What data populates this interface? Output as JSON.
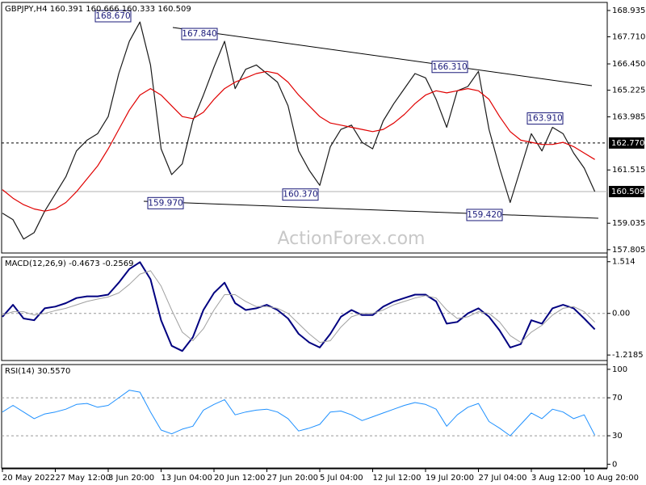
{
  "chart_data": [
    {
      "type": "line",
      "title": "GBPJPY,H4  160.391 160.666 160.333 160.509",
      "watermark": "ActionForex.com",
      "ylim": [
        157.65,
        169.31
      ],
      "yticks": [
        157.805,
        159.035,
        161.515,
        163.985,
        165.225,
        {
          "value": 166.45,
          "label": "166.450"
        },
        {
          "value": 167.71,
          "label": "167.710"
        },
        168.935
      ],
      "levels": [
        {
          "value": 162.77,
          "label": "162.770",
          "style": "dashed"
        },
        {
          "value": 160.509,
          "label": "160.509",
          "style": "solid"
        }
      ],
      "annotations": [
        {
          "value": 168.67,
          "label": "168.670"
        },
        {
          "value": 167.84,
          "label": "167.840"
        },
        {
          "value": 166.31,
          "label": "166.310"
        },
        {
          "value": 163.91,
          "label": "163.910"
        },
        {
          "value": 160.37,
          "label": "160.370"
        },
        {
          "value": 159.97,
          "label": "159.970"
        },
        {
          "value": 159.42,
          "label": "159.420"
        }
      ],
      "series": [
        {
          "color": "#1a1a1a",
          "values": [
            159.5,
            159.2,
            158.3,
            158.6,
            159.6,
            160.4,
            161.2,
            162.4,
            162.9,
            163.2,
            164.0,
            166.0,
            167.5,
            168.4,
            166.4,
            162.5,
            161.3,
            161.8,
            163.8,
            165.0,
            166.3,
            167.5,
            165.3,
            166.2,
            166.4,
            166.0,
            165.6,
            164.5,
            162.4,
            161.5,
            160.8,
            162.6,
            163.4,
            163.6,
            162.8,
            162.5,
            163.8,
            164.6,
            165.3,
            166.0,
            165.8,
            164.8,
            163.5,
            165.2,
            165.4,
            166.1,
            163.4,
            161.6,
            160.0,
            161.6,
            163.2,
            162.4,
            163.5,
            163.2,
            162.3,
            161.6,
            160.509
          ]
        },
        {
          "color": "#e00000",
          "values": [
            160.6,
            160.2,
            159.9,
            159.7,
            159.6,
            159.7,
            160.0,
            160.5,
            161.1,
            161.7,
            162.5,
            163.4,
            164.3,
            165.0,
            165.3,
            165.0,
            164.5,
            164.0,
            163.9,
            164.2,
            164.8,
            165.3,
            165.6,
            165.8,
            166.0,
            166.1,
            166.0,
            165.6,
            165.0,
            164.5,
            164.0,
            163.7,
            163.6,
            163.5,
            163.4,
            163.3,
            163.4,
            163.7,
            164.1,
            164.6,
            165.0,
            165.2,
            165.1,
            165.2,
            165.3,
            165.2,
            164.8,
            164.0,
            163.3,
            162.9,
            162.8,
            162.7,
            162.7,
            162.8,
            162.6,
            162.3,
            162.0
          ]
        }
      ]
    },
    {
      "type": "line",
      "title": "MACD(12,26,9) -0.4673 -0.2569",
      "ylim": [
        -1.38,
        1.65
      ],
      "yticks": [
        -1.2185,
        {
          "value": 0,
          "label": "0.00"
        },
        1.514
      ],
      "series": [
        {
          "color": "#000080",
          "width": 2,
          "values": [
            -0.1,
            0.25,
            -0.15,
            -0.2,
            0.15,
            0.2,
            0.3,
            0.45,
            0.5,
            0.5,
            0.55,
            0.9,
            1.3,
            1.5,
            1.0,
            -0.2,
            -0.95,
            -1.1,
            -0.7,
            0.1,
            0.6,
            0.9,
            0.3,
            0.1,
            0.15,
            0.25,
            0.1,
            -0.15,
            -0.6,
            -0.85,
            -1.0,
            -0.6,
            -0.1,
            0.1,
            -0.05,
            -0.05,
            0.2,
            0.35,
            0.45,
            0.55,
            0.55,
            0.35,
            -0.3,
            -0.25,
            0.0,
            0.15,
            -0.1,
            -0.5,
            -1.0,
            -0.9,
            -0.2,
            -0.3,
            0.15,
            0.25,
            0.15,
            -0.15,
            -0.4673
          ]
        },
        {
          "color": "#a0a0a0",
          "width": 1,
          "values": [
            -0.05,
            0.05,
            0.05,
            -0.05,
            0.0,
            0.08,
            0.15,
            0.25,
            0.35,
            0.42,
            0.48,
            0.6,
            0.85,
            1.15,
            1.25,
            0.8,
            0.1,
            -0.55,
            -0.8,
            -0.45,
            0.1,
            0.55,
            0.55,
            0.35,
            0.2,
            0.2,
            0.15,
            0.0,
            -0.3,
            -0.6,
            -0.85,
            -0.8,
            -0.4,
            -0.1,
            0.0,
            0.0,
            0.1,
            0.25,
            0.35,
            0.45,
            0.52,
            0.45,
            0.1,
            -0.15,
            -0.1,
            0.05,
            0.0,
            -0.25,
            -0.65,
            -0.85,
            -0.55,
            -0.35,
            -0.05,
            0.15,
            0.2,
            0.05,
            -0.2569
          ]
        }
      ]
    },
    {
      "type": "line",
      "title": "RSI(14) 30.5570",
      "ylim": [
        -4,
        105
      ],
      "yticks": [
        0,
        30,
        70,
        100
      ],
      "dashed_levels": [
        30,
        70
      ],
      "categories": [
        "20 May 2022",
        null,
        null,
        null,
        null,
        "27 May 12:00",
        null,
        null,
        null,
        null,
        "3 Jun 20:00",
        null,
        null,
        null,
        null,
        "13 Jun 04:00",
        null,
        null,
        null,
        null,
        "20 Jun 12:00",
        null,
        null,
        null,
        null,
        "27 Jun 20:00",
        null,
        null,
        null,
        null,
        "5 Jul 04:00",
        null,
        null,
        null,
        null,
        "12 Jul 12:00",
        null,
        null,
        null,
        null,
        "19 Jul 20:00",
        null,
        null,
        null,
        null,
        "27 Jul 04:00",
        null,
        null,
        null,
        null,
        "3 Aug 12:00",
        null,
        null,
        null,
        null,
        "10 Aug 20:00",
        null
      ],
      "series": [
        {
          "color": "#1e90ff",
          "width": 1,
          "values": [
            55,
            62,
            55,
            48,
            53,
            55,
            58,
            63,
            64,
            60,
            62,
            70,
            78,
            76,
            55,
            36,
            32,
            37,
            40,
            57,
            63,
            68,
            52,
            55,
            57,
            58,
            55,
            48,
            35,
            38,
            42,
            55,
            56,
            52,
            46,
            50,
            54,
            58,
            62,
            65,
            63,
            58,
            40,
            52,
            60,
            64,
            45,
            38,
            30,
            42,
            54,
            48,
            58,
            55,
            48,
            52,
            30.557
          ]
        }
      ]
    }
  ]
}
